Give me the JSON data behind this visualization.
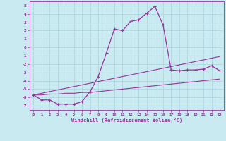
{
  "xlabel": "Windchill (Refroidissement éolien,°C)",
  "background_color": "#c8eaf0",
  "line_color": "#993399",
  "grid_color": "#b0d8e0",
  "xlim": [
    -0.5,
    23.5
  ],
  "ylim": [
    -7.5,
    5.5
  ],
  "xticks": [
    0,
    1,
    2,
    3,
    4,
    5,
    6,
    7,
    8,
    9,
    10,
    11,
    12,
    13,
    14,
    15,
    16,
    17,
    18,
    19,
    20,
    21,
    22,
    23
  ],
  "yticks": [
    -7,
    -6,
    -5,
    -4,
    -3,
    -2,
    -1,
    0,
    1,
    2,
    3,
    4,
    5
  ],
  "x_data": [
    0,
    1,
    2,
    3,
    4,
    5,
    6,
    7,
    8,
    9,
    10,
    11,
    12,
    13,
    14,
    15,
    16,
    17,
    18,
    19,
    20,
    21,
    22,
    23
  ],
  "y_curve": [
    -5.7,
    -6.3,
    -6.3,
    -6.8,
    -6.8,
    -6.8,
    -6.5,
    -5.3,
    -3.5,
    -0.7,
    2.2,
    2.0,
    3.1,
    3.3,
    4.1,
    4.9,
    2.7,
    -2.7,
    -2.8,
    -2.7,
    -2.7,
    -2.6,
    -2.2,
    -2.8
  ],
  "y_line1": [
    -5.7,
    -5.5,
    -5.3,
    -5.1,
    -4.9,
    -4.7,
    -4.5,
    -4.3,
    -4.1,
    -3.9,
    -3.7,
    -3.5,
    -3.3,
    -3.1,
    -2.9,
    -2.7,
    -2.5,
    -2.3,
    -2.1,
    -1.9,
    -1.7,
    -1.5,
    -1.3,
    -1.1
  ],
  "y_line2": [
    -5.7,
    -5.7,
    -5.6,
    -5.6,
    -5.5,
    -5.5,
    -5.4,
    -5.4,
    -5.3,
    -5.2,
    -5.1,
    -5.0,
    -4.9,
    -4.8,
    -4.7,
    -4.6,
    -4.5,
    -4.4,
    -4.3,
    -4.2,
    -4.1,
    -4.0,
    -3.9,
    -3.8
  ]
}
